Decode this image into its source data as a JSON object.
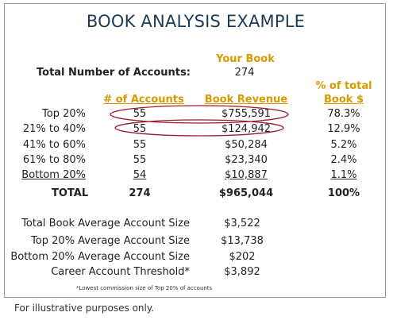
{
  "title": "BOOK ANALYSIS EXAMPLE",
  "your_book_header": "Your Book",
  "total_accounts_label": "Total Number of Accounts:",
  "total_accounts_value": "274",
  "col_accounts_header": "# of Accounts",
  "col_revenue_header": "Book Revenue",
  "col_pct_header_line1": "% of total",
  "col_pct_header_line2": "Book $",
  "rows": [
    {
      "label": "Top 20%",
      "accounts": "55",
      "revenue": "$755,591",
      "pct": "78.3%"
    },
    {
      "label": "21% to 40%",
      "accounts": "55",
      "revenue": "$124,942",
      "pct": "12.9%"
    },
    {
      "label": "41% to 60%",
      "accounts": "55",
      "revenue": "$50,284",
      "pct": "5.2%"
    },
    {
      "label": "61% to 80%",
      "accounts": "55",
      "revenue": "$23,340",
      "pct": "2.4%"
    },
    {
      "label": "Bottom 20%",
      "accounts": "54",
      "revenue": "$10,887",
      "pct": "1.1%"
    }
  ],
  "total_row": {
    "label": "TOTAL",
    "accounts": "274",
    "revenue": "$965,044",
    "pct": "100%"
  },
  "stats": [
    {
      "label": "Total Book Average Account Size",
      "value": "$3,522"
    },
    {
      "label": "Top 20% Average Account Size",
      "value": "$13,738"
    },
    {
      "label": "Bottom 20% Average Account Size",
      "value": "$202"
    },
    {
      "label": "Career Account Threshold*",
      "value": "$3,892"
    }
  ],
  "footnote": "*Lowest commission size of Top 20% of accounts",
  "caption": "For illustrative purposes only.",
  "colors": {
    "title": "#1f3a57",
    "header_gold": "#d79a00",
    "highlight_ellipse": "#9b1b30"
  }
}
